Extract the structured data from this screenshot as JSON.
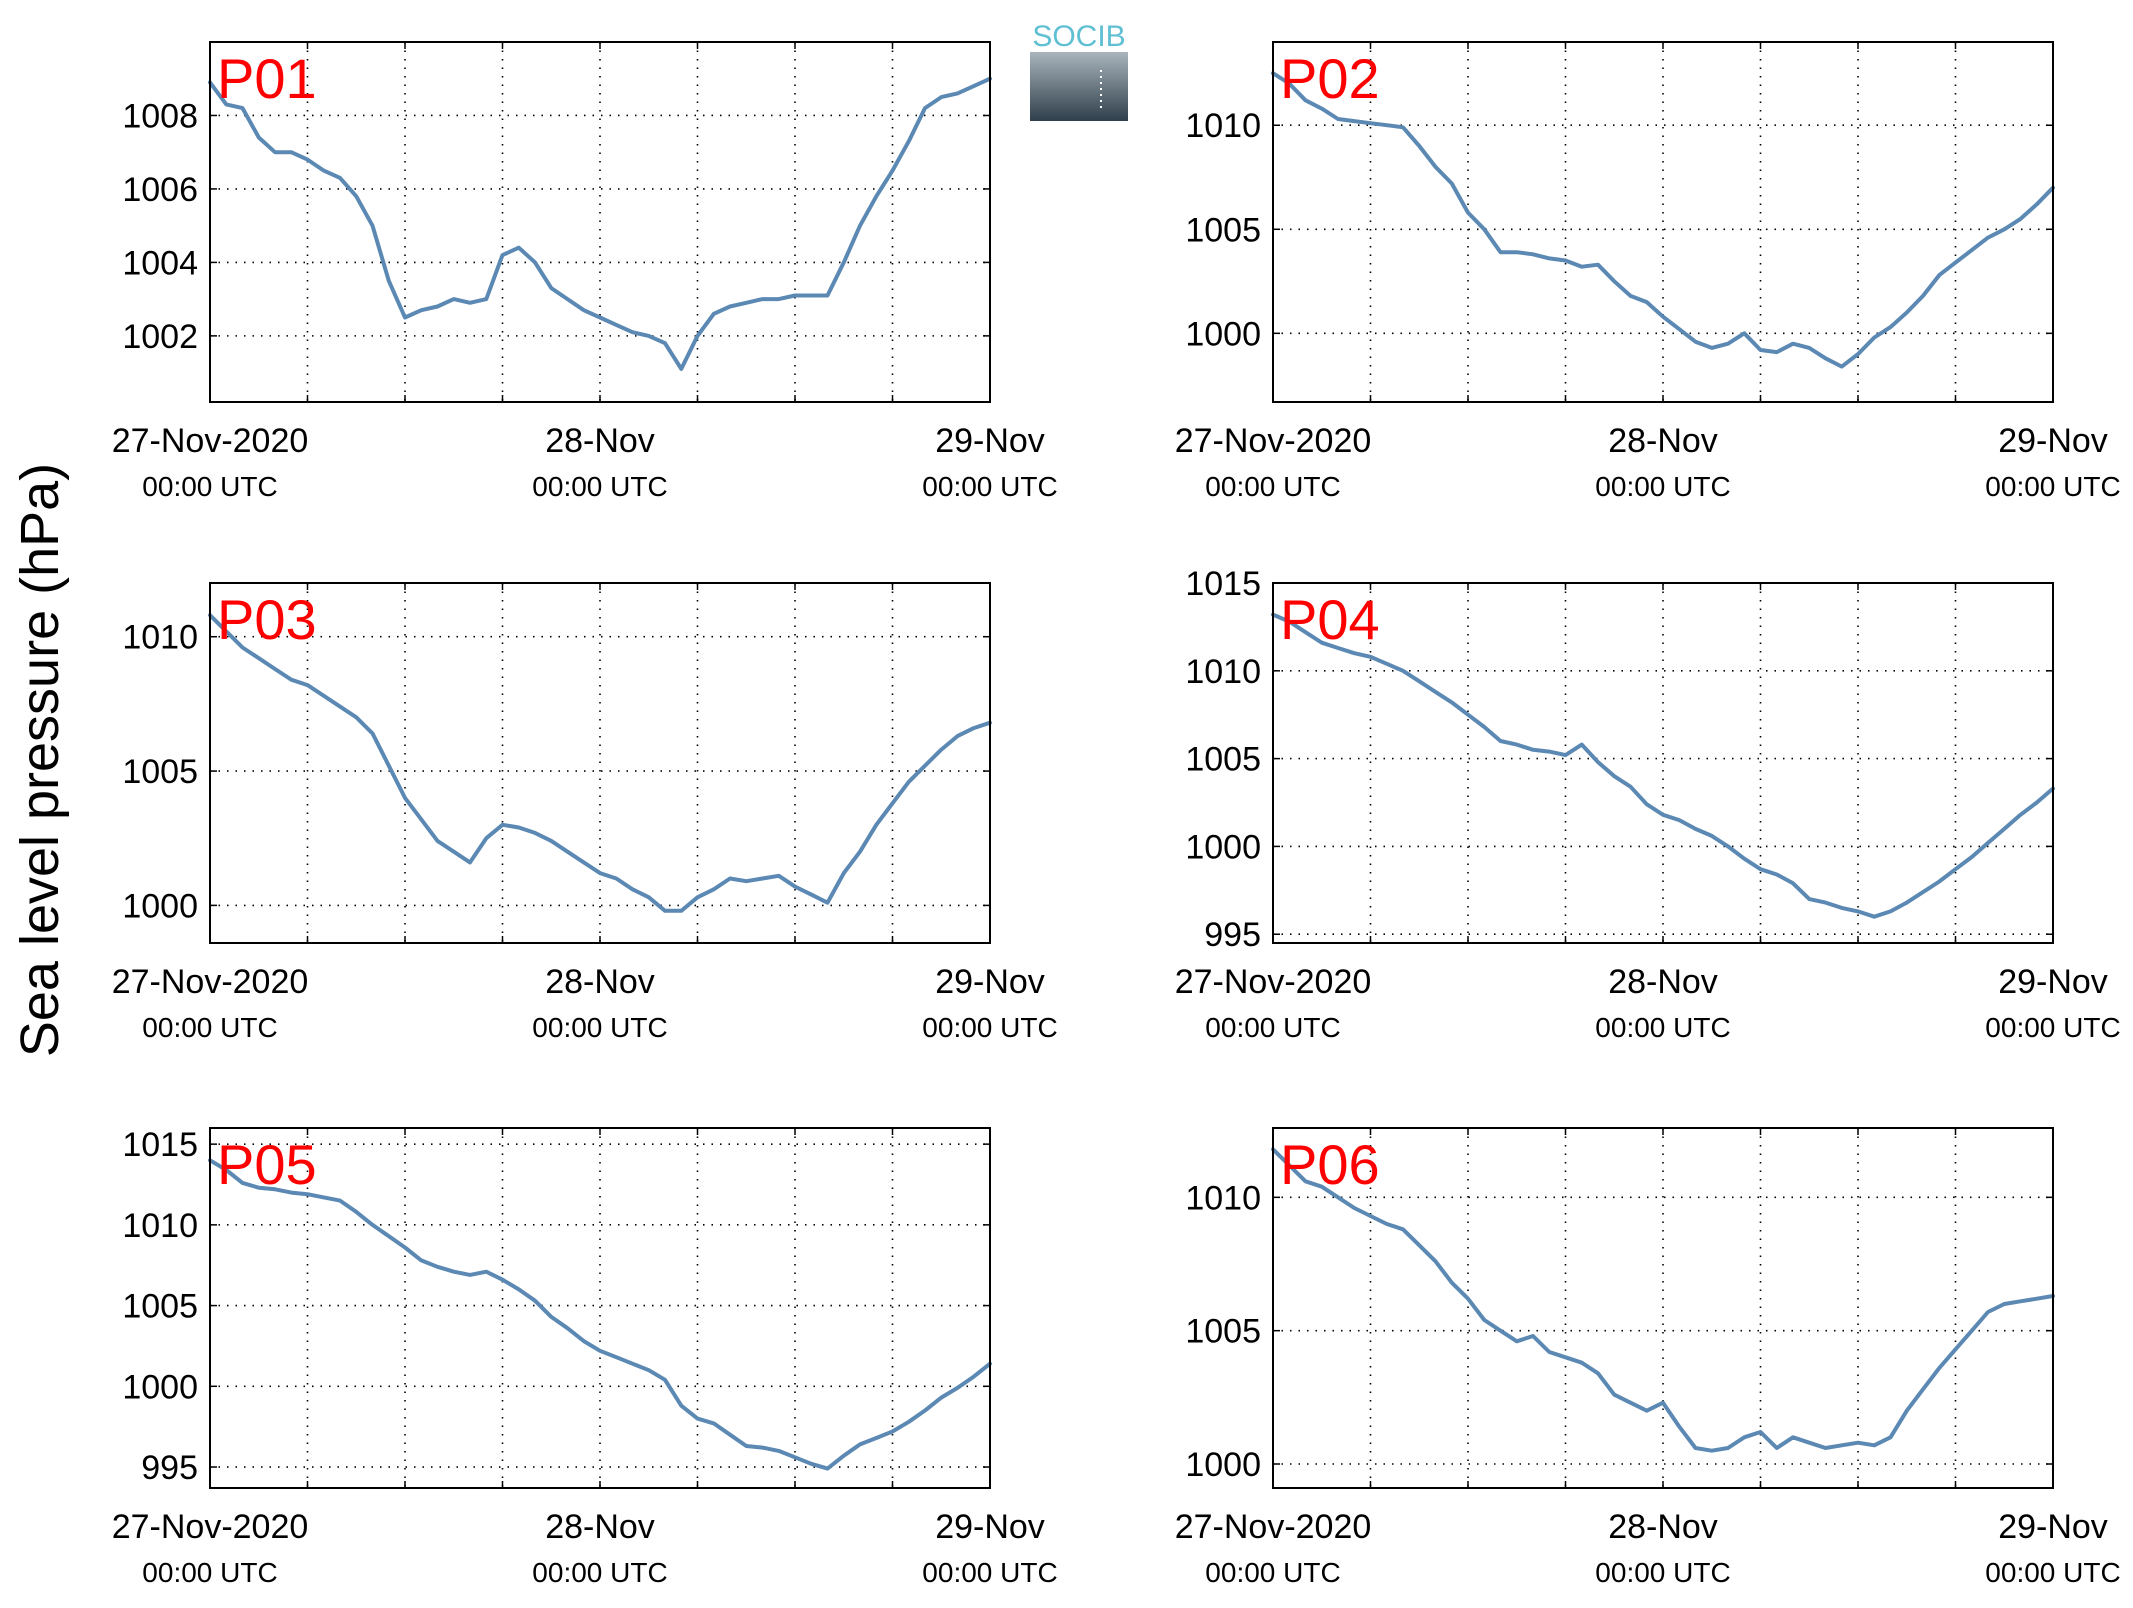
{
  "ylabel": "Sea level pressure (hPa)",
  "logo": {
    "text": "SOCIB",
    "text_color": "#5fbfd3",
    "top_color": "#a9b4bc",
    "bottom_color": "#2f3f4b"
  },
  "colors": {
    "line": "#5b89b3",
    "label": "#ff0000",
    "axis": "#000000",
    "grid": "#000000"
  },
  "chart_data": [
    {
      "type": "line",
      "title": "P01",
      "grid": true,
      "legend": "none",
      "xlim": [
        "2020-11-27T00:00",
        "2020-11-29T00:00"
      ],
      "ylim": [
        1000.2,
        1010.0
      ],
      "xticks": [
        {
          "x": "2020-11-27T00:00",
          "line1": "27-Nov-2020",
          "line2": "00:00 UTC"
        },
        {
          "x": "2020-11-28T00:00",
          "line1": "28-Nov",
          "line2": "00:00 UTC"
        },
        {
          "x": "2020-11-29T00:00",
          "line1": "29-Nov",
          "line2": "00:00 UTC"
        }
      ],
      "yticks": [
        1002,
        1004,
        1006,
        1008
      ],
      "series": [
        {
          "x_hours": [
            0,
            1,
            2,
            3,
            4,
            5,
            6,
            7,
            8,
            9,
            10,
            11,
            12,
            13,
            14,
            15,
            16,
            17,
            18,
            19,
            20,
            21,
            22,
            23,
            24,
            25,
            26,
            27,
            28,
            29,
            30,
            31,
            32,
            33,
            34,
            35,
            36,
            37,
            38,
            39,
            40,
            41,
            42,
            43,
            44,
            45,
            46,
            47,
            48
          ],
          "values": [
            1008.9,
            1008.3,
            1008.2,
            1007.4,
            1007.0,
            1007.0,
            1006.8,
            1006.5,
            1006.3,
            1005.8,
            1005.0,
            1003.5,
            1002.5,
            1002.7,
            1002.8,
            1003.0,
            1002.9,
            1003.0,
            1004.2,
            1004.4,
            1004.0,
            1003.3,
            1003.0,
            1002.7,
            1002.5,
            1002.3,
            1002.1,
            1002.0,
            1001.8,
            1001.1,
            1002.0,
            1002.6,
            1002.8,
            1002.9,
            1003.0,
            1003.0,
            1003.1,
            1003.1,
            1003.1,
            1004.0,
            1005.0,
            1005.8,
            1006.5,
            1007.3,
            1008.2,
            1008.5,
            1008.6,
            1008.8,
            1009.0
          ]
        }
      ]
    },
    {
      "type": "line",
      "title": "P02",
      "grid": true,
      "legend": "none",
      "xlim": [
        "2020-11-27T00:00",
        "2020-11-29T00:00"
      ],
      "ylim": [
        996.7,
        1014.0
      ],
      "xticks": [
        {
          "x": "2020-11-27T00:00",
          "line1": "27-Nov-2020",
          "line2": "00:00 UTC"
        },
        {
          "x": "2020-11-28T00:00",
          "line1": "28-Nov",
          "line2": "00:00 UTC"
        },
        {
          "x": "2020-11-29T00:00",
          "line1": "29-Nov",
          "line2": "00:00 UTC"
        }
      ],
      "yticks": [
        1000,
        1005,
        1010
      ],
      "series": [
        {
          "x_hours": [
            0,
            1,
            2,
            3,
            4,
            5,
            6,
            7,
            8,
            9,
            10,
            11,
            12,
            13,
            14,
            15,
            16,
            17,
            18,
            19,
            20,
            21,
            22,
            23,
            24,
            25,
            26,
            27,
            28,
            29,
            30,
            31,
            32,
            33,
            34,
            35,
            36,
            37,
            38,
            39,
            40,
            41,
            42,
            43,
            44,
            45,
            46,
            47,
            48
          ],
          "values": [
            1012.5,
            1012.0,
            1011.2,
            1010.8,
            1010.3,
            1010.2,
            1010.1,
            1010.0,
            1009.9,
            1009.0,
            1008.0,
            1007.2,
            1005.8,
            1005.0,
            1003.9,
            1003.9,
            1003.8,
            1003.6,
            1003.5,
            1003.2,
            1003.3,
            1002.5,
            1001.8,
            1001.5,
            1000.8,
            1000.2,
            999.6,
            999.3,
            999.5,
            1000.0,
            999.2,
            999.1,
            999.5,
            999.3,
            998.8,
            998.4,
            999.0,
            999.8,
            1000.3,
            1001.0,
            1001.8,
            1002.8,
            1003.4,
            1004.0,
            1004.6,
            1005.0,
            1005.5,
            1006.2,
            1007.0
          ]
        }
      ]
    },
    {
      "type": "line",
      "title": "P03",
      "grid": true,
      "legend": "none",
      "xlim": [
        "2020-11-27T00:00",
        "2020-11-29T00:00"
      ],
      "ylim": [
        998.6,
        1012.0
      ],
      "xticks": [
        {
          "x": "2020-11-27T00:00",
          "line1": "27-Nov-2020",
          "line2": "00:00 UTC"
        },
        {
          "x": "2020-11-28T00:00",
          "line1": "28-Nov",
          "line2": "00:00 UTC"
        },
        {
          "x": "2020-11-29T00:00",
          "line1": "29-Nov",
          "line2": "00:00 UTC"
        }
      ],
      "yticks": [
        1000,
        1005,
        1010
      ],
      "series": [
        {
          "x_hours": [
            0,
            1,
            2,
            3,
            4,
            5,
            6,
            7,
            8,
            9,
            10,
            11,
            12,
            13,
            14,
            15,
            16,
            17,
            18,
            19,
            20,
            21,
            22,
            23,
            24,
            25,
            26,
            27,
            28,
            29,
            30,
            31,
            32,
            33,
            34,
            35,
            36,
            37,
            38,
            39,
            40,
            41,
            42,
            43,
            44,
            45,
            46,
            47,
            48
          ],
          "values": [
            1010.8,
            1010.2,
            1009.6,
            1009.2,
            1008.8,
            1008.4,
            1008.2,
            1007.8,
            1007.4,
            1007.0,
            1006.4,
            1005.2,
            1004.0,
            1003.2,
            1002.4,
            1002.0,
            1001.6,
            1002.5,
            1003.0,
            1002.9,
            1002.7,
            1002.4,
            1002.0,
            1001.6,
            1001.2,
            1001.0,
            1000.6,
            1000.3,
            999.8,
            999.8,
            1000.3,
            1000.6,
            1001.0,
            1000.9,
            1001.0,
            1001.1,
            1000.7,
            1000.4,
            1000.1,
            1001.2,
            1002.0,
            1003.0,
            1003.8,
            1004.6,
            1005.2,
            1005.8,
            1006.3,
            1006.6,
            1006.8
          ]
        }
      ]
    },
    {
      "type": "line",
      "title": "P04",
      "grid": true,
      "legend": "none",
      "xlim": [
        "2020-11-27T00:00",
        "2020-11-29T00:00"
      ],
      "ylim": [
        994.5,
        1015.0
      ],
      "xticks": [
        {
          "x": "2020-11-27T00:00",
          "line1": "27-Nov-2020",
          "line2": "00:00 UTC"
        },
        {
          "x": "2020-11-28T00:00",
          "line1": "28-Nov",
          "line2": "00:00 UTC"
        },
        {
          "x": "2020-11-29T00:00",
          "line1": "29-Nov",
          "line2": "00:00 UTC"
        }
      ],
      "yticks": [
        995,
        1000,
        1005,
        1010,
        1015
      ],
      "series": [
        {
          "x_hours": [
            0,
            1,
            2,
            3,
            4,
            5,
            6,
            7,
            8,
            9,
            10,
            11,
            12,
            13,
            14,
            15,
            16,
            17,
            18,
            19,
            20,
            21,
            22,
            23,
            24,
            25,
            26,
            27,
            28,
            29,
            30,
            31,
            32,
            33,
            34,
            35,
            36,
            37,
            38,
            39,
            40,
            41,
            42,
            43,
            44,
            45,
            46,
            47,
            48
          ],
          "values": [
            1013.2,
            1012.8,
            1012.2,
            1011.6,
            1011.3,
            1011.0,
            1010.8,
            1010.4,
            1010.0,
            1009.4,
            1008.8,
            1008.2,
            1007.5,
            1006.8,
            1006.0,
            1005.8,
            1005.5,
            1005.4,
            1005.2,
            1005.8,
            1004.8,
            1004.0,
            1003.4,
            1002.4,
            1001.8,
            1001.5,
            1001.0,
            1000.6,
            1000.0,
            999.3,
            998.7,
            998.4,
            997.9,
            997.0,
            996.8,
            996.5,
            996.3,
            996.0,
            996.3,
            996.8,
            997.4,
            998.0,
            998.7,
            999.4,
            1000.2,
            1001.0,
            1001.8,
            1002.5,
            1003.3
          ]
        }
      ]
    },
    {
      "type": "line",
      "title": "P05",
      "grid": true,
      "legend": "none",
      "xlim": [
        "2020-11-27T00:00",
        "2020-11-29T00:00"
      ],
      "ylim": [
        993.7,
        1016.0
      ],
      "xticks": [
        {
          "x": "2020-11-27T00:00",
          "line1": "27-Nov-2020",
          "line2": "00:00 UTC"
        },
        {
          "x": "2020-11-28T00:00",
          "line1": "28-Nov",
          "line2": "00:00 UTC"
        },
        {
          "x": "2020-11-29T00:00",
          "line1": "29-Nov",
          "line2": "00:00 UTC"
        }
      ],
      "yticks": [
        995,
        1000,
        1005,
        1010,
        1015
      ],
      "series": [
        {
          "x_hours": [
            0,
            1,
            2,
            3,
            4,
            5,
            6,
            7,
            8,
            9,
            10,
            11,
            12,
            13,
            14,
            15,
            16,
            17,
            18,
            19,
            20,
            21,
            22,
            23,
            24,
            25,
            26,
            27,
            28,
            29,
            30,
            31,
            32,
            33,
            34,
            35,
            36,
            37,
            38,
            39,
            40,
            41,
            42,
            43,
            44,
            45,
            46,
            47,
            48
          ],
          "values": [
            1014.0,
            1013.4,
            1012.6,
            1012.3,
            1012.2,
            1012.0,
            1011.9,
            1011.7,
            1011.5,
            1010.8,
            1010.0,
            1009.3,
            1008.6,
            1007.8,
            1007.4,
            1007.1,
            1006.9,
            1007.1,
            1006.6,
            1006.0,
            1005.3,
            1004.3,
            1003.6,
            1002.8,
            1002.2,
            1001.8,
            1001.4,
            1001.0,
            1000.4,
            998.8,
            998.0,
            997.7,
            997.0,
            996.3,
            996.2,
            996.0,
            995.6,
            995.2,
            994.9,
            995.7,
            996.4,
            996.8,
            997.2,
            997.8,
            998.5,
            999.3,
            999.9,
            1000.6,
            1001.4
          ]
        }
      ]
    },
    {
      "type": "line",
      "title": "P06",
      "grid": true,
      "legend": "none",
      "xlim": [
        "2020-11-27T00:00",
        "2020-11-29T00:00"
      ],
      "ylim": [
        999.1,
        1012.6
      ],
      "xticks": [
        {
          "x": "2020-11-27T00:00",
          "line1": "27-Nov-2020",
          "line2": "00:00 UTC"
        },
        {
          "x": "2020-11-28T00:00",
          "line1": "28-Nov",
          "line2": "00:00 UTC"
        },
        {
          "x": "2020-11-29T00:00",
          "line1": "29-Nov",
          "line2": "00:00 UTC"
        }
      ],
      "yticks": [
        1000,
        1005,
        1010
      ],
      "series": [
        {
          "x_hours": [
            0,
            1,
            2,
            3,
            4,
            5,
            6,
            7,
            8,
            9,
            10,
            11,
            12,
            13,
            14,
            15,
            16,
            17,
            18,
            19,
            20,
            21,
            22,
            23,
            24,
            25,
            26,
            27,
            28,
            29,
            30,
            31,
            32,
            33,
            34,
            35,
            36,
            37,
            38,
            39,
            40,
            41,
            42,
            43,
            44,
            45,
            46,
            47,
            48
          ],
          "values": [
            1011.8,
            1011.2,
            1010.6,
            1010.4,
            1010.0,
            1009.6,
            1009.3,
            1009.0,
            1008.8,
            1008.2,
            1007.6,
            1006.8,
            1006.2,
            1005.4,
            1005.0,
            1004.6,
            1004.8,
            1004.2,
            1004.0,
            1003.8,
            1003.4,
            1002.6,
            1002.3,
            1002.0,
            1002.3,
            1001.4,
            1000.6,
            1000.5,
            1000.6,
            1001.0,
            1001.2,
            1000.6,
            1001.0,
            1000.8,
            1000.6,
            1000.7,
            1000.8,
            1000.7,
            1001.0,
            1002.0,
            1002.8,
            1003.6,
            1004.3,
            1005.0,
            1005.7,
            1006.0,
            1006.1,
            1006.2,
            1006.3
          ]
        }
      ]
    }
  ]
}
